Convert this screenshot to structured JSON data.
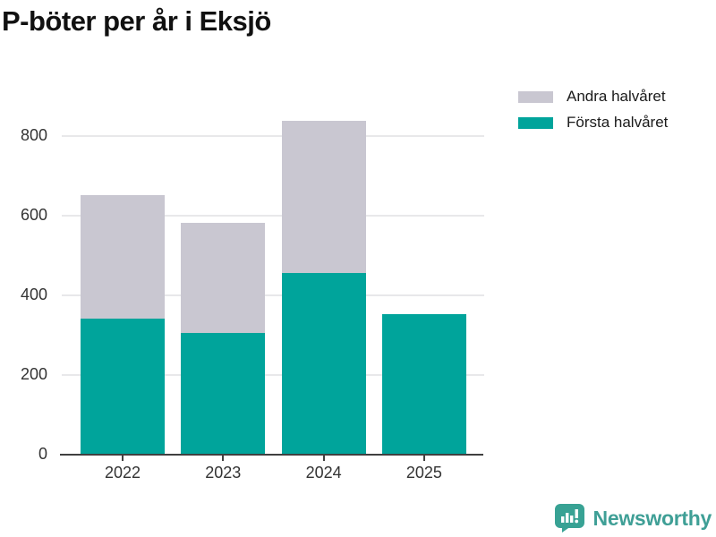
{
  "chart_data": {
    "type": "bar",
    "stacked": true,
    "title": "P-böter per år i Eksjö",
    "categories": [
      "2022",
      "2023",
      "2024",
      "2025"
    ],
    "series": [
      {
        "name": "Första halvåret",
        "color": "#00a49b",
        "values": [
          343,
          305,
          456,
          353
        ]
      },
      {
        "name": "Andra halvåret",
        "color": "#c9c7d1",
        "values": [
          310,
          278,
          384,
          0
        ]
      }
    ],
    "totals": [
      653,
      583,
      840,
      353
    ],
    "xlabel": "",
    "ylabel": "",
    "ylim": [
      0,
      840
    ],
    "yticks": [
      0,
      200,
      400,
      600,
      800
    ],
    "grid": true,
    "legend": {
      "position": "top-right",
      "entries": [
        "Andra halvåret",
        "Första halvåret"
      ]
    },
    "colors": {
      "axis": "#404040",
      "gridline": "#e8e8ea",
      "tick_label": "#333333"
    }
  },
  "branding": {
    "name": "Newsworthy",
    "color": "#3f9f96",
    "icon": "newsworthy-chart-bubble-icon"
  }
}
